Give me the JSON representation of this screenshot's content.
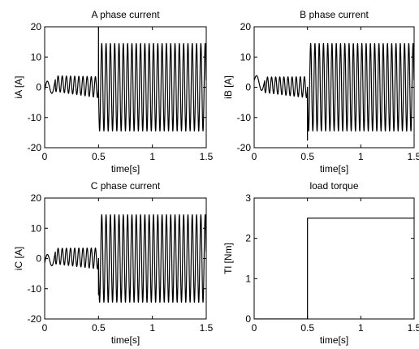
{
  "chart_data": [
    {
      "type": "line",
      "title": "A phase current",
      "xlabel": "time[s]",
      "ylabel": "iA [A]",
      "xlim": [
        0,
        1.5
      ],
      "ylim": [
        -20,
        20
      ],
      "xticks": [
        0,
        0.5,
        1,
        1.5
      ],
      "xtick_labels": [
        "0",
        "0.5",
        "1",
        "1.5"
      ],
      "yticks": [
        -20,
        -10,
        0,
        10,
        20
      ],
      "ytick_labels": [
        "-20",
        "-10",
        "0",
        "10",
        "20"
      ],
      "grid": false,
      "series": [
        {
          "signal": "sinusoid",
          "segments": [
            {
              "t_start": 0.0,
              "t_end": 0.1,
              "amplitude_start": 2.5,
              "amplitude_end": 2.5,
              "offset_start": -1.0,
              "offset_end": 1.2,
              "freq_hz": 11
            },
            {
              "t_start": 0.1,
              "t_end": 0.5,
              "amplitude_start": 2.6,
              "amplitude_end": 3.5,
              "offset_start": 1.2,
              "offset_end": 0.0,
              "freq_hz": 26
            },
            {
              "t_start": 0.5,
              "t_end": 1.5,
              "amplitude_start": 14.5,
              "amplitude_end": 14.5,
              "offset_start": 0.0,
              "offset_end": 0.0,
              "freq_hz": 25
            }
          ],
          "events": [
            {
              "t": 0.5,
              "y": 20
            }
          ]
        }
      ]
    },
    {
      "type": "line",
      "title": "B phase current",
      "xlabel": "time[s]",
      "ylabel": "iB [A]",
      "xlim": [
        0,
        1.5
      ],
      "ylim": [
        -20,
        20
      ],
      "xticks": [
        0,
        0.5,
        1,
        1.5
      ],
      "xtick_labels": [
        "0",
        "0.5",
        "1",
        "1.5"
      ],
      "yticks": [
        -20,
        -10,
        0,
        10,
        20
      ],
      "ytick_labels": [
        "-20",
        "-10",
        "0",
        "10",
        "20"
      ],
      "grid": false,
      "series": [
        {
          "signal": "sinusoid",
          "segments": [
            {
              "t_start": 0.0,
              "t_end": 0.1,
              "amplitude_start": 1.8,
              "amplitude_end": 2.5,
              "offset_start": 2.2,
              "offset_end": 0.8,
              "freq_hz": 11
            },
            {
              "t_start": 0.1,
              "t_end": 0.5,
              "amplitude_start": 2.6,
              "amplitude_end": 3.5,
              "offset_start": 0.8,
              "offset_end": 0.0,
              "freq_hz": 26
            },
            {
              "t_start": 0.5,
              "t_end": 1.5,
              "amplitude_start": 14.5,
              "amplitude_end": 14.5,
              "offset_start": 0.0,
              "offset_end": 0.0,
              "freq_hz": 25
            }
          ],
          "events": [
            {
              "t": 0.5,
              "y": -17.5
            }
          ]
        }
      ]
    },
    {
      "type": "line",
      "title": "C phase current",
      "xlabel": "time[s]",
      "ylabel": "iC [A]",
      "xlim": [
        0,
        1.5
      ],
      "ylim": [
        -20,
        20
      ],
      "xticks": [
        0,
        0.5,
        1,
        1.5
      ],
      "xtick_labels": [
        "0",
        "0.5",
        "1",
        "1.5"
      ],
      "yticks": [
        -20,
        -10,
        0,
        10,
        20
      ],
      "ytick_labels": [
        "-20",
        "-10",
        "0",
        "10",
        "20"
      ],
      "grid": false,
      "series": [
        {
          "signal": "sinusoid",
          "segments": [
            {
              "t_start": 0.0,
              "t_end": 0.1,
              "amplitude_start": 2.2,
              "amplitude_end": 2.6,
              "offset_start": -1.5,
              "offset_end": 0.8,
              "freq_hz": 11
            },
            {
              "t_start": 0.1,
              "t_end": 0.5,
              "amplitude_start": 2.6,
              "amplitude_end": 3.5,
              "offset_start": 0.8,
              "offset_end": 0.0,
              "freq_hz": 26
            },
            {
              "t_start": 0.5,
              "t_end": 1.5,
              "amplitude_start": 14.5,
              "amplitude_end": 14.5,
              "offset_start": 0.0,
              "offset_end": 0.0,
              "freq_hz": 25
            }
          ],
          "events": [
            {
              "t": 0.5,
              "y": -12
            }
          ]
        }
      ]
    },
    {
      "type": "line",
      "title": "load torque",
      "xlabel": "time[s]",
      "ylabel": "Tl [Nm]",
      "xlim": [
        0,
        1.5
      ],
      "ylim": [
        0,
        3
      ],
      "xticks": [
        0,
        0.5,
        1,
        1.5
      ],
      "xtick_labels": [
        "0",
        "0.5",
        "1",
        "1.5"
      ],
      "yticks": [
        0,
        1,
        2,
        3
      ],
      "ytick_labels": [
        "0",
        "1",
        "2",
        "3"
      ],
      "grid": false,
      "series": [
        {
          "x": [
            0,
            0.5,
            0.5,
            1.5
          ],
          "y": [
            0,
            0,
            2.5,
            2.5
          ]
        }
      ]
    }
  ]
}
